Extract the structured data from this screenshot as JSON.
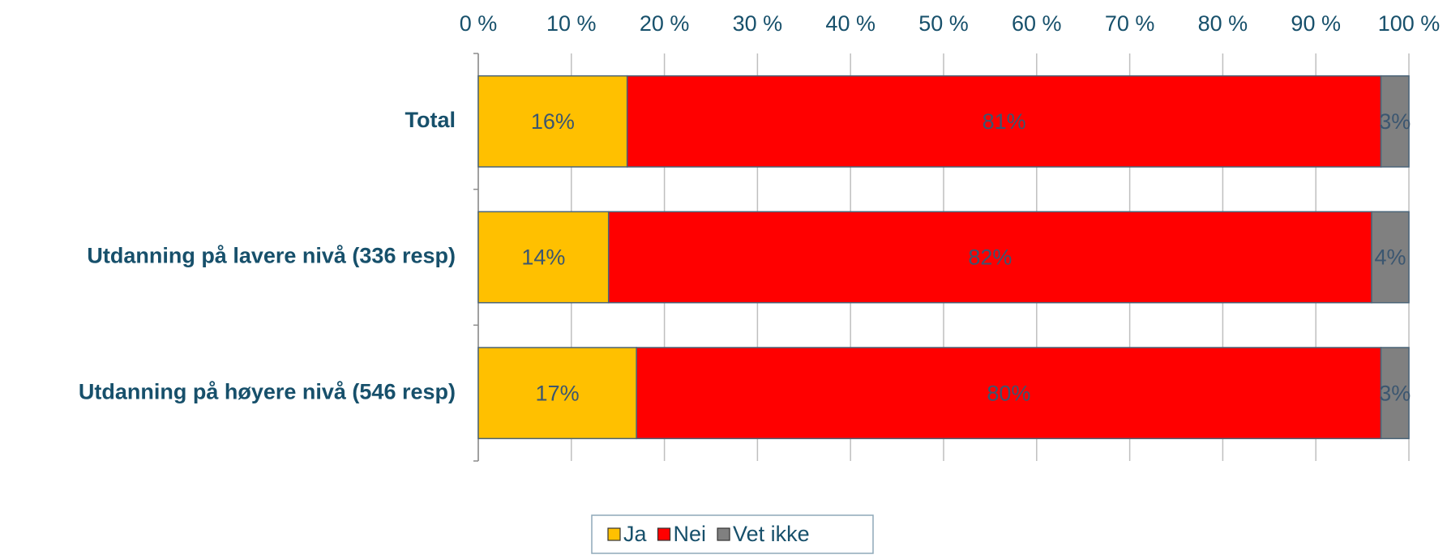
{
  "chart_data": {
    "type": "stacked-bar-horizontal",
    "categories": [
      "Total",
      "Utdanning på lavere nivå (336 resp)",
      "Utdanning på høyere nivå (546 resp)"
    ],
    "series": [
      {
        "name": "Ja",
        "color": "#FFC000",
        "values": [
          16,
          14,
          17
        ],
        "value_labels": [
          "16%",
          "14%",
          "17%"
        ]
      },
      {
        "name": "Nei",
        "color": "#FF0000",
        "values": [
          81,
          82,
          80
        ],
        "value_labels": [
          "81%",
          "82%",
          "80%"
        ]
      },
      {
        "name": "Vet ikke",
        "color": "#808080",
        "values": [
          3,
          4,
          3
        ],
        "value_labels": [
          "3%",
          "4%",
          "3%"
        ]
      }
    ],
    "xlim": [
      0,
      100
    ],
    "xticks": [
      {
        "value": 0,
        "label": "0 %"
      },
      {
        "value": 10,
        "label": "10 %"
      },
      {
        "value": 20,
        "label": "20 %"
      },
      {
        "value": 30,
        "label": "30 %"
      },
      {
        "value": 40,
        "label": "40 %"
      },
      {
        "value": 50,
        "label": "50 %"
      },
      {
        "value": 60,
        "label": "60 %"
      },
      {
        "value": 70,
        "label": "70 %"
      },
      {
        "value": 80,
        "label": "80 %"
      },
      {
        "value": 90,
        "label": "90 %"
      },
      {
        "value": 100,
        "label": "100 %"
      }
    ],
    "grid": true,
    "legend": "bottom"
  }
}
